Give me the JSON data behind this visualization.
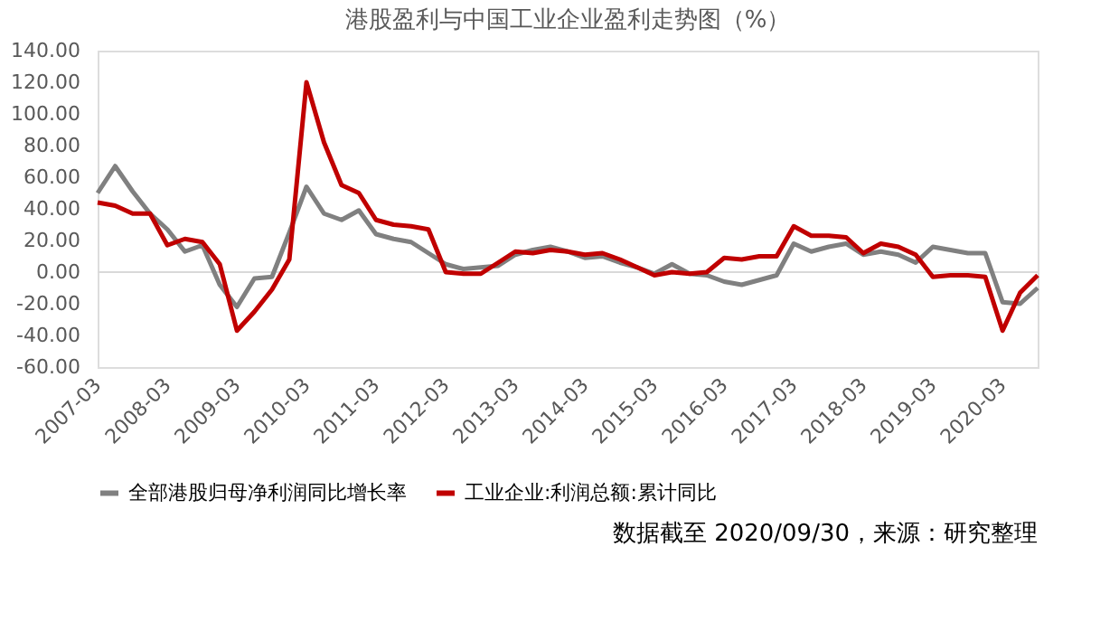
{
  "chart_data": {
    "type": "line",
    "title": "港股盈利与中国工业企业盈利走势图（%）",
    "x": [
      "2007-03",
      "2007-06",
      "2007-09",
      "2007-12",
      "2008-03",
      "2008-06",
      "2008-09",
      "2008-12",
      "2009-03",
      "2009-06",
      "2009-09",
      "2009-12",
      "2010-03",
      "2010-06",
      "2010-09",
      "2010-12",
      "2011-03",
      "2011-06",
      "2011-09",
      "2011-12",
      "2012-03",
      "2012-06",
      "2012-09",
      "2012-12",
      "2013-03",
      "2013-06",
      "2013-09",
      "2013-12",
      "2014-03",
      "2014-06",
      "2014-09",
      "2014-12",
      "2015-03",
      "2015-06",
      "2015-09",
      "2015-12",
      "2016-03",
      "2016-06",
      "2016-09",
      "2016-12",
      "2017-03",
      "2017-06",
      "2017-09",
      "2017-12",
      "2018-03",
      "2018-06",
      "2018-09",
      "2018-12",
      "2019-03",
      "2019-06",
      "2019-09",
      "2019-12",
      "2020-03",
      "2020-06",
      "2020-09"
    ],
    "series": [
      {
        "name": "全部港股归母净利润同比增长率",
        "color": "#808080",
        "values": [
          50,
          67,
          51,
          37,
          27,
          13,
          17,
          -8,
          -22,
          -4,
          -3,
          25,
          54,
          37,
          33,
          39,
          24,
          21,
          19,
          12,
          5,
          2,
          3,
          4,
          11,
          14,
          16,
          13,
          9,
          10,
          6,
          3,
          -1,
          5,
          -1,
          -2,
          -6,
          -8,
          -5,
          -2,
          18,
          13,
          16,
          18,
          11,
          13,
          11,
          6,
          16,
          14,
          12,
          12,
          -19,
          -20,
          -10
        ]
      },
      {
        "name": "工业企业:利润总额:累计同比",
        "color": "#c00000",
        "values": [
          44,
          42,
          37,
          37,
          17,
          21,
          19,
          5,
          -37,
          -25,
          -11,
          8,
          120,
          82,
          55,
          50,
          33,
          30,
          29,
          27,
          0,
          -1,
          -1,
          6,
          13,
          12,
          14,
          13,
          11,
          12,
          8,
          3,
          -2,
          0,
          -1,
          0,
          9,
          8,
          10,
          10,
          29,
          23,
          23,
          22,
          12,
          18,
          16,
          11,
          -3,
          -2,
          -2,
          -3,
          -37,
          -13,
          -2
        ]
      }
    ],
    "xlim": [
      "2007-03",
      "2020-09"
    ],
    "xticks": [
      "2007-03",
      "2008-03",
      "2009-03",
      "2010-03",
      "2011-03",
      "2012-03",
      "2013-03",
      "2014-03",
      "2015-03",
      "2016-03",
      "2017-03",
      "2018-03",
      "2019-03",
      "2020-03"
    ],
    "ylim": [
      -60,
      140
    ],
    "yticks": [
      {
        "value": -60,
        "label": "-60.00"
      },
      {
        "value": -40,
        "label": "-40.00"
      },
      {
        "value": -20,
        "label": "-20.00"
      },
      {
        "value": 0,
        "label": "0.00"
      },
      {
        "value": 20,
        "label": "20.00"
      },
      {
        "value": 40,
        "label": "40.00"
      },
      {
        "value": 60,
        "label": "60.00"
      },
      {
        "value": 80,
        "label": "80.00"
      },
      {
        "value": 100,
        "label": "100.00"
      },
      {
        "value": 120,
        "label": "120.00"
      },
      {
        "value": 140,
        "label": "140.00"
      }
    ],
    "ref_lines": [
      {
        "axis": "y",
        "value": 0,
        "label": null,
        "color": "#d9d9d9"
      }
    ],
    "grid": false,
    "legend": "bottom",
    "marker": "none",
    "line_style": "solid",
    "annotations": [
      "数据截至 2020/09/30，来源：研究整理"
    ]
  }
}
